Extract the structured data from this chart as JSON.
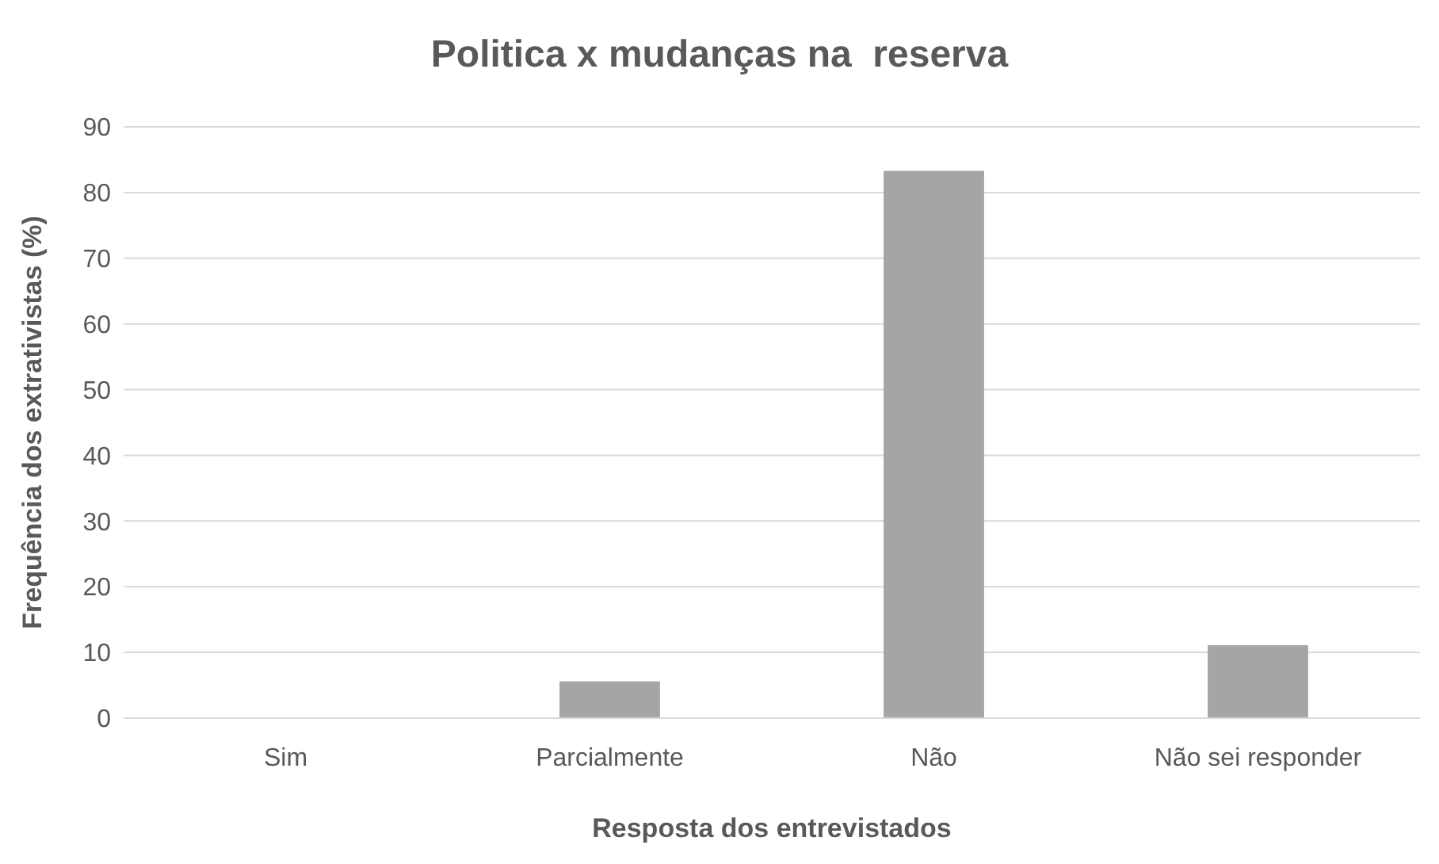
{
  "chart_data": {
    "type": "bar",
    "title": "Politica x mudanças na  reserva",
    "xlabel": "Resposta dos entrevistados",
    "ylabel": "Frequência dos extrativistas (%)",
    "categories": [
      "Sim",
      "Parcialmente",
      "Não",
      "Não sei responder"
    ],
    "values": [
      0,
      5.6,
      83.3,
      11.1
    ],
    "color": "#a5a5a5",
    "ylim": [
      0,
      90
    ],
    "yticks": [
      0,
      10,
      20,
      30,
      40,
      50,
      60,
      70,
      80,
      90
    ],
    "grid": "y"
  }
}
